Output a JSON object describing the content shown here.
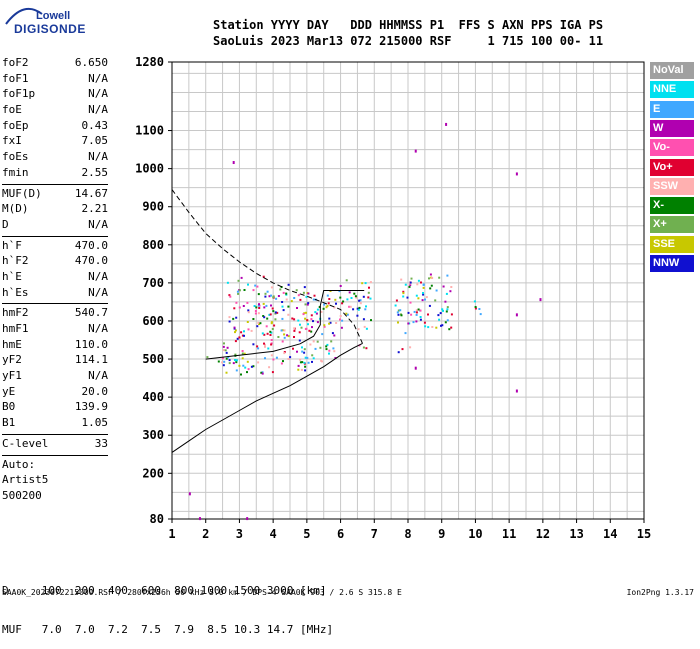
{
  "logo": {
    "line1": "Lowell",
    "line2": "DIGISONDE"
  },
  "header": {
    "labels": [
      "Station",
      "YYYY",
      "DAY",
      "DDD",
      "HHMMSS",
      "P1",
      "FFS",
      "S",
      "AXN",
      "PPS",
      "IGA",
      "PS"
    ],
    "row1": "Station YYYY DAY   DDD HHMMSS P1  FFS S AXN PPS IGA PS",
    "row2": "SaoLuis 2023 Mar13 072 215000 RSF     1 715 100 00- 11"
  },
  "params": {
    "group1": [
      {
        "name": "foF2",
        "value": "6.650"
      },
      {
        "name": "foF1",
        "value": "N/A"
      },
      {
        "name": "foF1p",
        "value": "N/A"
      },
      {
        "name": "foE",
        "value": "N/A"
      },
      {
        "name": "foEp",
        "value": "0.43"
      },
      {
        "name": "fxI",
        "value": "7.05"
      },
      {
        "name": "foEs",
        "value": "N/A"
      },
      {
        "name": "fmin",
        "value": "2.55"
      }
    ],
    "group2": [
      {
        "name": "MUF(D)",
        "value": "14.67"
      },
      {
        "name": "M(D)",
        "value": "2.21"
      },
      {
        "name": "D",
        "value": "N/A"
      }
    ],
    "group3": [
      {
        "name": "h`F",
        "value": "470.0"
      },
      {
        "name": "h`F2",
        "value": "470.0"
      },
      {
        "name": "h`E",
        "value": "N/A"
      },
      {
        "name": "h`Es",
        "value": "N/A"
      }
    ],
    "group4": [
      {
        "name": "hmF2",
        "value": "540.7"
      },
      {
        "name": "hmF1",
        "value": "N/A"
      },
      {
        "name": "hmE",
        "value": "110.0"
      },
      {
        "name": "yF2",
        "value": "114.1"
      },
      {
        "name": "yF1",
        "value": "N/A"
      },
      {
        "name": "yE",
        "value": "20.0"
      },
      {
        "name": "B0",
        "value": "139.9"
      },
      {
        "name": "B1",
        "value": "1.05"
      }
    ],
    "clevel": {
      "name": "C-level",
      "value": "33"
    },
    "auto": [
      "Auto:",
      "Artist5",
      "500200"
    ]
  },
  "legend": [
    {
      "label": "NoVal",
      "color": "#a0a0a0"
    },
    {
      "label": "NNE",
      "color": "#00e0f0"
    },
    {
      "label": "E",
      "color": "#40a8ff"
    },
    {
      "label": "W",
      "color": "#b000b0"
    },
    {
      "label": "Vo-",
      "color": "#ff50b0"
    },
    {
      "label": "Vo+",
      "color": "#e00030"
    },
    {
      "label": "SSW",
      "color": "#ffb0b0"
    },
    {
      "label": "X-",
      "color": "#008000"
    },
    {
      "label": "X+",
      "color": "#70b050"
    },
    {
      "label": "SSE",
      "color": "#c8c800"
    },
    {
      "label": "NNW",
      "color": "#1010d0"
    }
  ],
  "chart_data": {
    "type": "scatter",
    "title": "",
    "xlabel": "",
    "ylabel": "",
    "xlim": [
      1,
      15
    ],
    "ylim": [
      80,
      1280
    ],
    "x_ticks": [
      1,
      2,
      3,
      4,
      5,
      6,
      7,
      8,
      9,
      10,
      11,
      12,
      13,
      14,
      15
    ],
    "y_ticks": [
      80,
      200,
      300,
      400,
      500,
      600,
      700,
      800,
      900,
      1000,
      1100,
      1280
    ],
    "grid": true,
    "echo_clusters": [
      {
        "f_min": 1.9,
        "f_max": 2.6,
        "h_min": 490,
        "h_max": 510
      },
      {
        "f_min": 2.5,
        "f_max": 4.0,
        "h_min": 460,
        "h_max": 720
      },
      {
        "f_min": 3.9,
        "f_max": 5.0,
        "h_min": 470,
        "h_max": 700
      },
      {
        "f_min": 4.9,
        "f_max": 5.9,
        "h_min": 490,
        "h_max": 690
      },
      {
        "f_min": 5.9,
        "f_max": 6.9,
        "h_min": 580,
        "h_max": 710
      },
      {
        "f_min": 6.5,
        "f_max": 6.9,
        "h_min": 520,
        "h_max": 540
      },
      {
        "f_min": 7.6,
        "f_max": 8.4,
        "h_min": 560,
        "h_max": 720
      },
      {
        "f_min": 8.4,
        "f_max": 9.3,
        "h_min": 580,
        "h_max": 730
      },
      {
        "f_min": 7.6,
        "f_max": 8.1,
        "h_min": 520,
        "h_max": 540
      },
      {
        "f_min": 9.9,
        "f_max": 10.3,
        "h_min": 620,
        "h_max": 660
      }
    ],
    "isolated_points": [
      {
        "f": 2.8,
        "h": 1020
      },
      {
        "f": 8.2,
        "h": 1050
      },
      {
        "f": 9.1,
        "h": 1120
      },
      {
        "f": 11.2,
        "h": 990
      },
      {
        "f": 11.2,
        "h": 620
      },
      {
        "f": 11.9,
        "h": 660
      },
      {
        "f": 11.2,
        "h": 420
      },
      {
        "f": 8.2,
        "h": 480
      },
      {
        "f": 1.8,
        "h": 85
      },
      {
        "f": 3.2,
        "h": 85
      },
      {
        "f": 1.5,
        "h": 150
      }
    ],
    "bottomside_profile": [
      {
        "f": 1.0,
        "h": 255
      },
      {
        "f": 1.5,
        "h": 285
      },
      {
        "f": 2.0,
        "h": 315
      },
      {
        "f": 2.5,
        "h": 340
      },
      {
        "f": 3.0,
        "h": 365
      },
      {
        "f": 3.5,
        "h": 390
      },
      {
        "f": 4.0,
        "h": 410
      },
      {
        "f": 4.5,
        "h": 430
      },
      {
        "f": 5.0,
        "h": 455
      },
      {
        "f": 5.5,
        "h": 480
      },
      {
        "f": 6.0,
        "h": 510
      },
      {
        "f": 6.4,
        "h": 530
      },
      {
        "f": 6.65,
        "h": 541
      }
    ],
    "topside_profile": [
      {
        "f": 1.0,
        "h": 945
      },
      {
        "f": 1.5,
        "h": 885
      },
      {
        "f": 2.0,
        "h": 830
      },
      {
        "f": 2.5,
        "h": 790
      },
      {
        "f": 3.0,
        "h": 755
      },
      {
        "f": 3.5,
        "h": 725
      },
      {
        "f": 4.0,
        "h": 700
      },
      {
        "f": 4.5,
        "h": 680
      },
      {
        "f": 5.0,
        "h": 665
      },
      {
        "f": 5.5,
        "h": 648
      },
      {
        "f": 6.0,
        "h": 630
      },
      {
        "f": 6.4,
        "h": 590
      },
      {
        "f": 6.65,
        "h": 541
      }
    ],
    "trace": [
      {
        "f": 2.0,
        "h": 500
      },
      {
        "f": 3.0,
        "h": 510
      },
      {
        "f": 4.0,
        "h": 520
      },
      {
        "f": 4.8,
        "h": 540
      },
      {
        "f": 5.2,
        "h": 560
      },
      {
        "f": 5.4,
        "h": 590
      },
      {
        "f": 5.4,
        "h": 640
      },
      {
        "f": 5.5,
        "h": 680
      },
      {
        "f": 6.0,
        "h": 680
      },
      {
        "f": 6.7,
        "h": 680
      }
    ]
  },
  "muf_table": {
    "row1": "D     100  200  400  600  800 1000 1500 3000 [km]",
    "row2": "MUF   7.0  7.0  7.2  7.5  7.9  8.5 10.3 14.7 [MHz]"
  },
  "footer": {
    "left": "SAA0K_2023072215000.RSF / 280fx256h 50 kHz 5.0 km / DPS-4 SAA0K 903 / 2.6 S 315.8 E",
    "right": "Ion2Png 1.3.17"
  }
}
